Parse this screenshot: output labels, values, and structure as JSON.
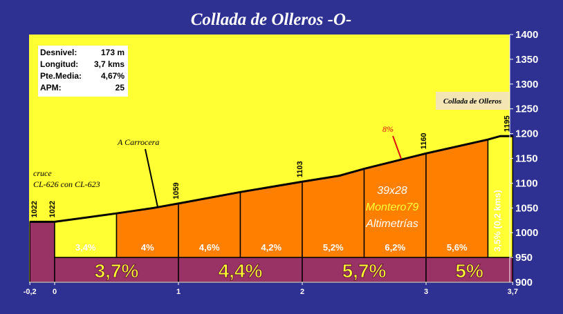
{
  "chart_data": {
    "type": "area",
    "title": "Collada de Olleros -O-",
    "ylim": [
      900,
      1400
    ],
    "y_ticks": [
      900,
      950,
      1000,
      1050,
      1100,
      1150,
      1200,
      1250,
      1300,
      1350,
      1400
    ],
    "xlim": [
      -0.2,
      3.7
    ],
    "x_ticks": [
      {
        "value": -0.2,
        "label": "-0,2"
      },
      {
        "value": 0,
        "label": "0"
      },
      {
        "value": 1,
        "label": "1"
      },
      {
        "value": 2,
        "label": "2"
      },
      {
        "value": 3,
        "label": "3"
      },
      {
        "value": 3.7,
        "label": "3,7"
      }
    ],
    "profile": [
      {
        "x": -0.2,
        "y": 1022
      },
      {
        "x": 0,
        "y": 1022
      },
      {
        "x": 0.5,
        "y": 1039
      },
      {
        "x": 0.8,
        "y": 1050
      },
      {
        "x": 1.0,
        "y": 1059
      },
      {
        "x": 1.5,
        "y": 1082
      },
      {
        "x": 2.0,
        "y": 1103
      },
      {
        "x": 2.3,
        "y": 1115
      },
      {
        "x": 2.5,
        "y": 1129
      },
      {
        "x": 3.0,
        "y": 1160
      },
      {
        "x": 3.5,
        "y": 1188
      },
      {
        "x": 3.6,
        "y": 1195
      },
      {
        "x": 3.7,
        "y": 1195
      }
    ],
    "segments": [
      {
        "x0": -0.2,
        "x1": 0,
        "label": "",
        "color": "#993366"
      },
      {
        "x0": 0,
        "x1": 0.5,
        "label": "3,4%",
        "color": "#ffff33"
      },
      {
        "x0": 0.5,
        "x1": 1.0,
        "label": "4%",
        "color": "#ff8000"
      },
      {
        "x0": 1.0,
        "x1": 1.5,
        "label": "4,6%",
        "color": "#ff8000"
      },
      {
        "x0": 1.5,
        "x1": 2.0,
        "label": "4,2%",
        "color": "#ff8000"
      },
      {
        "x0": 2.0,
        "x1": 2.5,
        "label": "5,2%",
        "color": "#ff8000"
      },
      {
        "x0": 2.5,
        "x1": 3.0,
        "label": "6,2%",
        "color": "#ff8000"
      },
      {
        "x0": 3.0,
        "x1": 3.5,
        "label": "5,6%",
        "color": "#ff8000"
      },
      {
        "x0": 3.5,
        "x1": 3.7,
        "label": "3,5% (0,2 kms)",
        "color": "#ffff33",
        "vertical": true
      }
    ],
    "km_bands": [
      {
        "x0": 0,
        "x1": 1,
        "label": "3,7%"
      },
      {
        "x0": 1,
        "x1": 2,
        "label": "4,4%"
      },
      {
        "x0": 2,
        "x1": 3,
        "label": "5,7%"
      },
      {
        "x0": 3,
        "x1": 3.7,
        "label": "5%"
      }
    ],
    "elevation_labels": [
      {
        "x": -0.2,
        "y": 1022,
        "label": "1022"
      },
      {
        "x": 0,
        "y": 1022,
        "label": "1022"
      },
      {
        "x": 1.0,
        "y": 1059,
        "label": "1059"
      },
      {
        "x": 2.0,
        "y": 1103,
        "label": "1103"
      },
      {
        "x": 3.0,
        "y": 1160,
        "label": "1160"
      },
      {
        "x": 3.7,
        "y": 1195,
        "label": "1195"
      }
    ],
    "band_colors": {
      "background": "#ffff33",
      "frame": "#2e3192",
      "km_band": "#993366",
      "segment": "#ff8000"
    }
  },
  "info_box": {
    "rows": [
      {
        "key": "Desnivel:",
        "value": "173 m"
      },
      {
        "key": "Longitud:",
        "value": "3,7 kms"
      },
      {
        "key": "Pte.Media:",
        "value": "4,67%"
      },
      {
        "key": "APM:",
        "value": "25"
      }
    ]
  },
  "annotations": {
    "summit": "Collada de Olleros",
    "carrocera": "A Carrocera",
    "cruce_1": "cruce",
    "cruce_2": "CL-626 con CL-623",
    "max_grade": "8%",
    "credit_1": "39x28",
    "credit_2": "Montero79",
    "credit_3": "Altimetrías"
  }
}
